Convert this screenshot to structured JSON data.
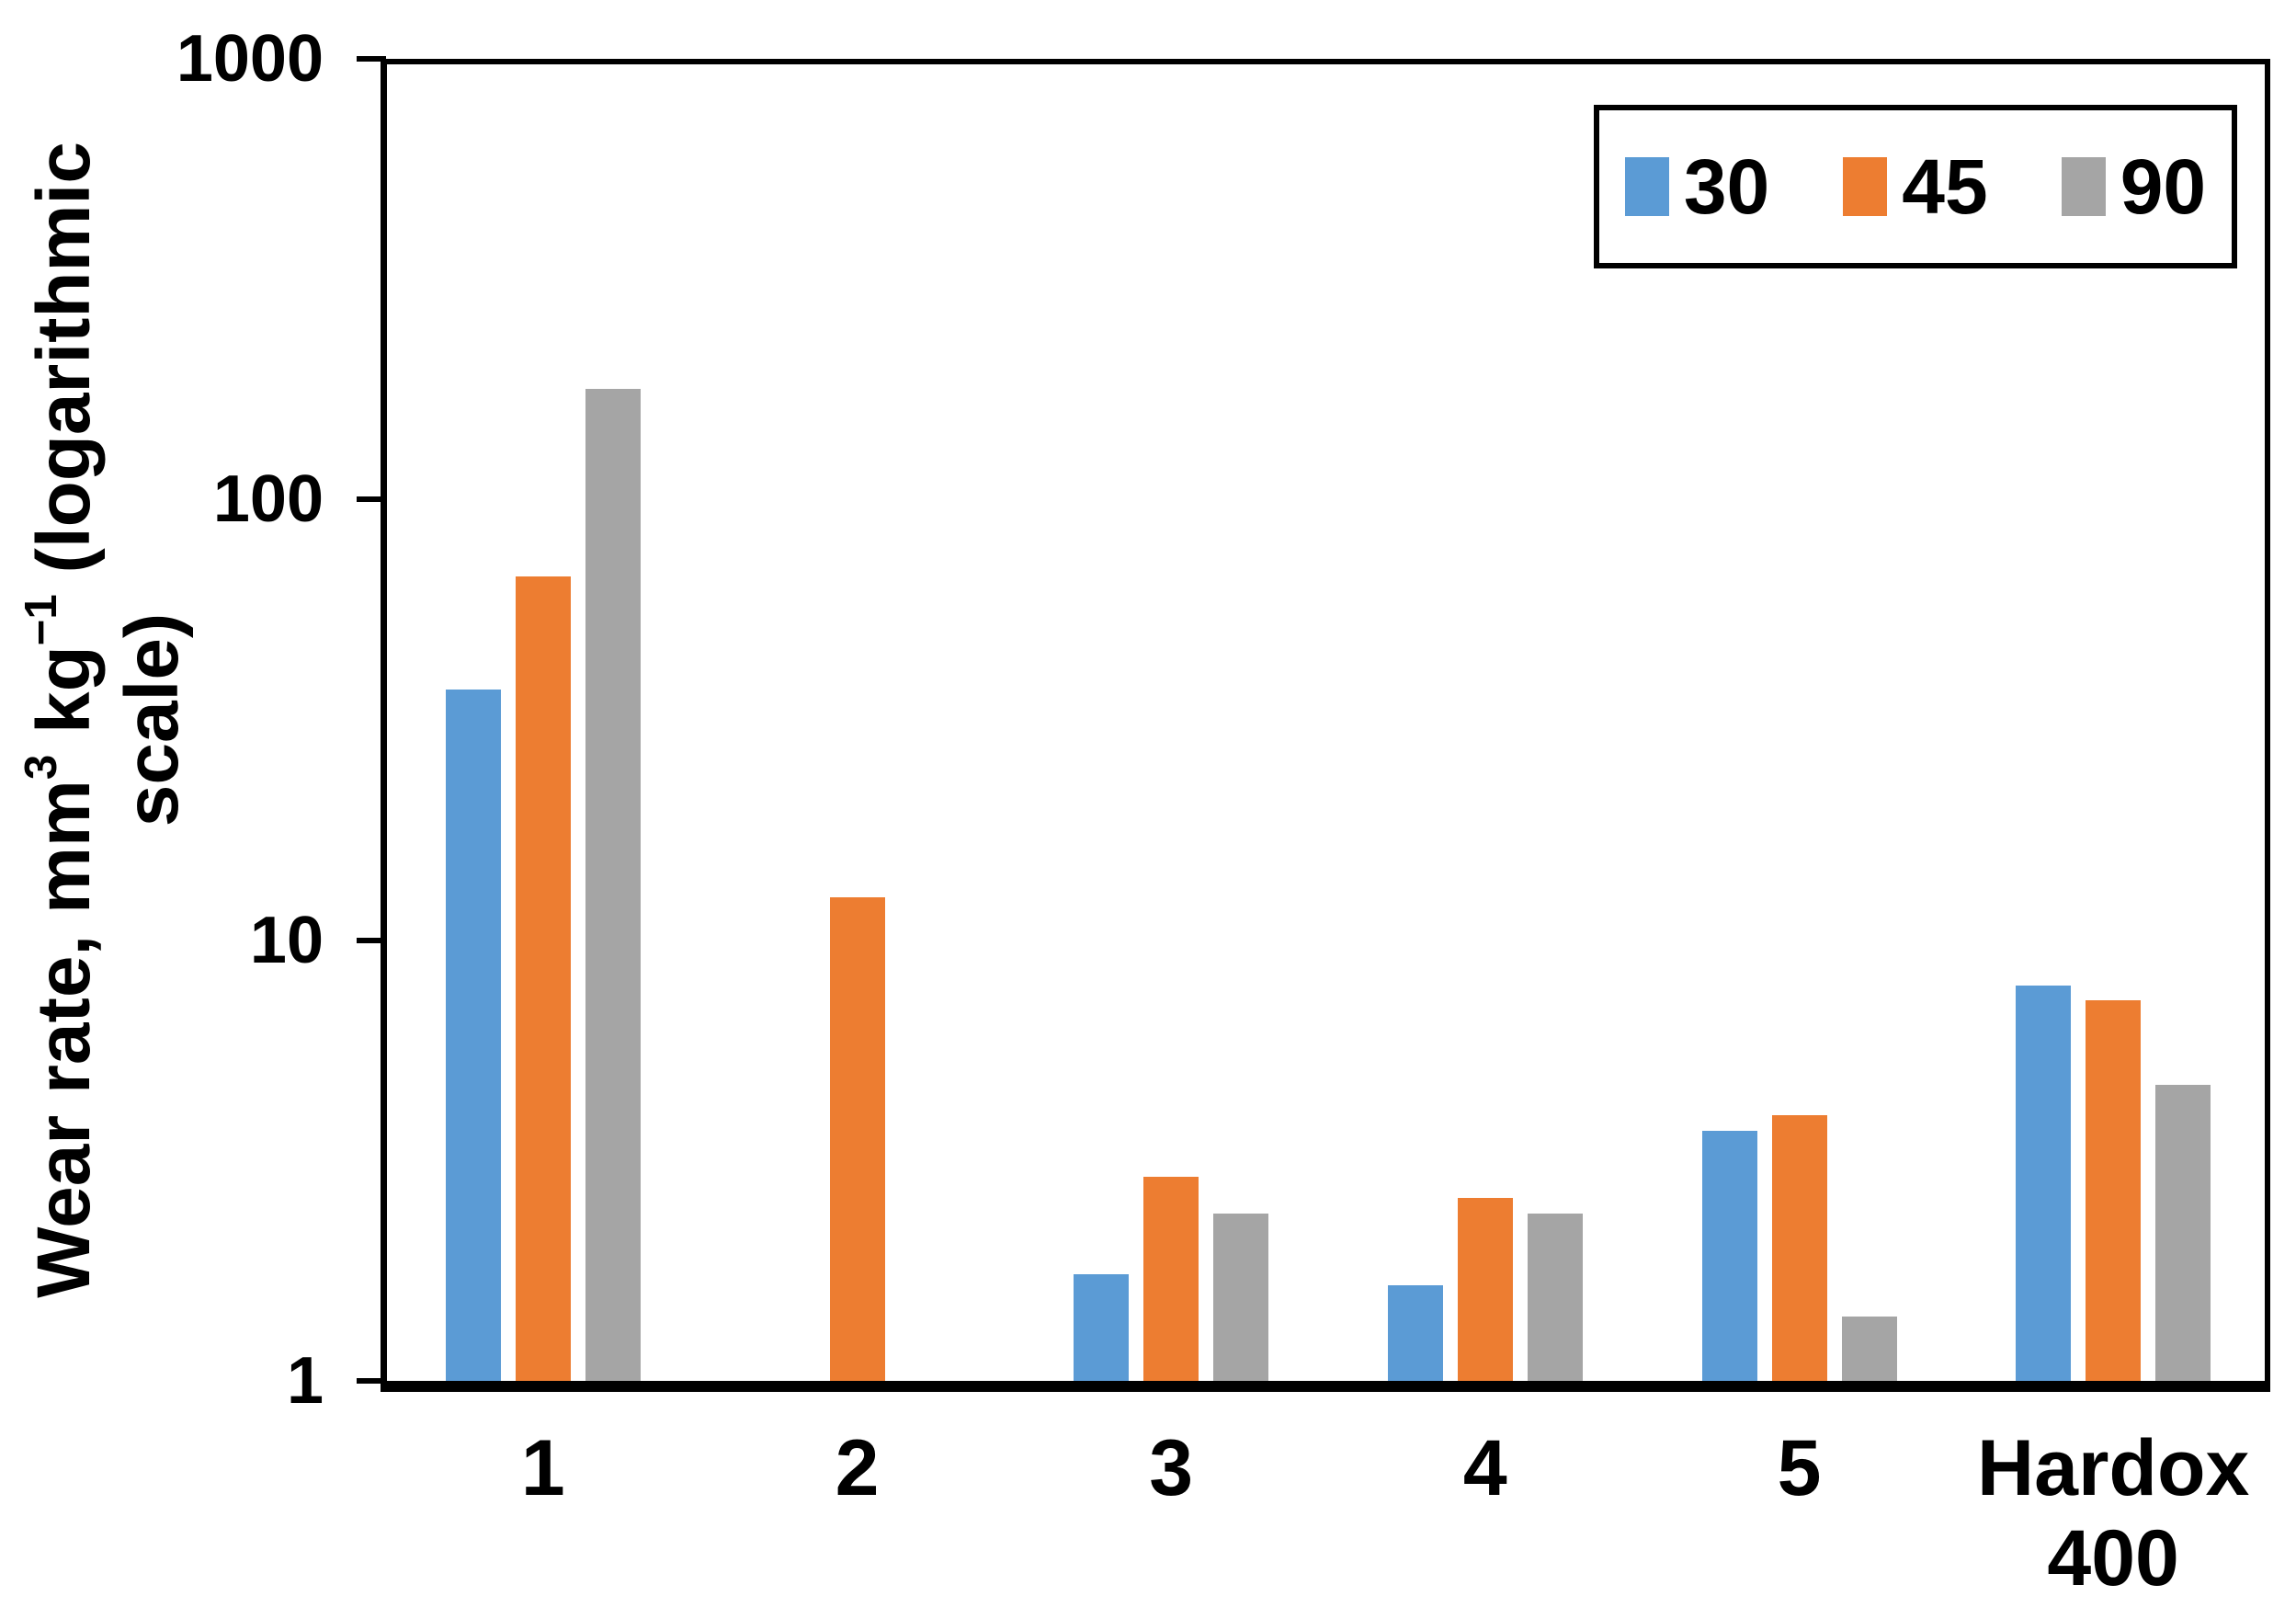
{
  "chart_data": {
    "type": "bar",
    "y_scale": "log10",
    "title": "",
    "xlabel": "",
    "ylabel_plain": "Wear rate, mm3 kg-1 (logarithmic scale)",
    "ylabel_lines": [
      [
        {
          "t": "Wear rate, mm"
        },
        {
          "t": "3",
          "sup": true
        },
        {
          "t": " kg"
        },
        {
          "t": "−1",
          "sup": true
        },
        {
          "t": " (logarithmic"
        }
      ],
      [
        {
          "t": "scale)"
        }
      ]
    ],
    "categories": [
      "1",
      "2",
      "3",
      "4",
      "5",
      "Hardox\n400"
    ],
    "series": [
      {
        "name": "30",
        "color": "#5B9BD5",
        "values": [
          37,
          null,
          1.75,
          1.65,
          3.7,
          7.9
        ]
      },
      {
        "name": "45",
        "color": "#ED7D31",
        "values": [
          67,
          12.5,
          2.9,
          2.6,
          4.0,
          7.3
        ]
      },
      {
        "name": "90",
        "color": "#A5A5A5",
        "values": [
          178,
          null,
          2.4,
          2.4,
          1.4,
          4.7
        ]
      }
    ],
    "yticks": [
      {
        "value": 1,
        "label": "1"
      },
      {
        "value": 10,
        "label": "10"
      },
      {
        "value": 100,
        "label": "100"
      },
      {
        "value": 1000,
        "label": "1000"
      }
    ],
    "ylim": [
      1,
      1000
    ],
    "grid": false,
    "legend_position": "top-right",
    "legend_entries": [
      "30",
      "45",
      "90"
    ],
    "axis_color": "#000000",
    "background": "#FFFFFF"
  }
}
